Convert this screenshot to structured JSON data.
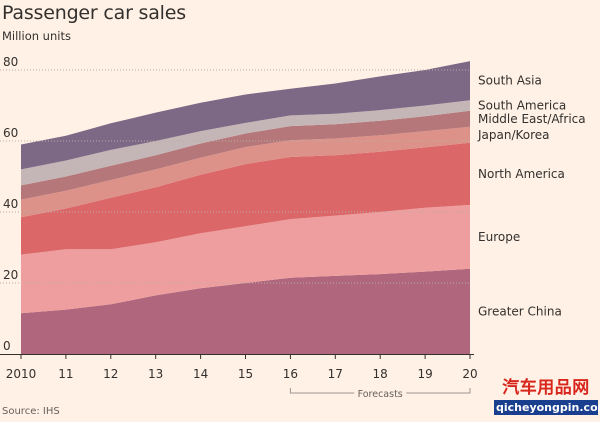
{
  "title": "Passenger car sales",
  "subtitle": "Million units",
  "source": "Source: IHS",
  "watermark": {
    "text": "汽车用品网",
    "url": "qicheyongpin.com"
  },
  "chart_data": {
    "type": "area",
    "stacked": true,
    "x": [
      2010,
      2011,
      2012,
      2013,
      2014,
      2015,
      2016,
      2017,
      2018,
      2019,
      2020
    ],
    "x_tick_labels": [
      "2010",
      "11",
      "12",
      "13",
      "14",
      "15",
      "16",
      "17",
      "18",
      "19",
      "20"
    ],
    "ylim": [
      0,
      80
    ],
    "y_ticks": [
      0,
      20,
      40,
      60,
      80
    ],
    "grid": "horizontal dotted",
    "legend": "right-side inline labels",
    "forecast_label": "Forecasts",
    "forecast_range": [
      2016,
      2020
    ],
    "series": [
      {
        "name": "Greater China",
        "color": "#b0667c",
        "values": [
          11.5,
          12.5,
          14.0,
          16.5,
          18.5,
          20.0,
          21.5,
          22.0,
          22.5,
          23.2,
          24.0
        ]
      },
      {
        "name": "Europe",
        "color": "#ee9e9e",
        "values": [
          16.5,
          17.0,
          15.5,
          15.0,
          15.5,
          16.0,
          16.5,
          17.0,
          17.5,
          18.0,
          18.0
        ]
      },
      {
        "name": "North America",
        "color": "#db6769",
        "values": [
          10.5,
          11.5,
          14.5,
          15.5,
          16.5,
          17.5,
          17.5,
          17.0,
          17.0,
          17.0,
          17.5
        ]
      },
      {
        "name": "Japan/Korea",
        "color": "#dc9289",
        "values": [
          5.0,
          5.0,
          5.0,
          5.0,
          4.8,
          4.8,
          4.7,
          4.7,
          4.6,
          4.6,
          4.5
        ]
      },
      {
        "name": "Middle East/Africa",
        "color": "#b57779",
        "values": [
          4.0,
          4.0,
          4.0,
          4.0,
          4.0,
          3.8,
          4.0,
          4.0,
          4.1,
          4.2,
          4.5
        ]
      },
      {
        "name": "South America",
        "color": "#c4b5b7",
        "values": [
          4.5,
          4.5,
          4.5,
          4.0,
          3.5,
          3.0,
          3.0,
          3.0,
          3.0,
          3.0,
          3.0
        ]
      },
      {
        "name": "South Asia",
        "color": "#7d6886",
        "values": [
          7.0,
          7.0,
          7.5,
          8.0,
          8.0,
          8.0,
          7.5,
          8.5,
          9.5,
          10.0,
          11.0
        ]
      }
    ]
  }
}
